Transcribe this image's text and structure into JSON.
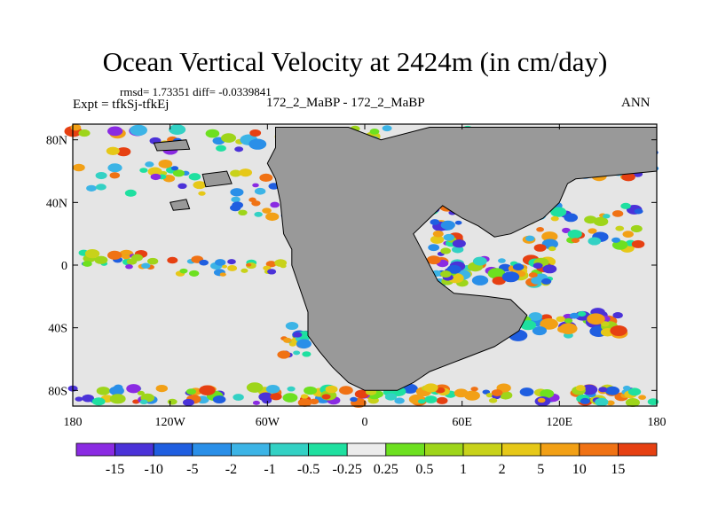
{
  "title": "Ocean Vertical Velocity at 2424m (in cm/day)",
  "stats_line": "rmsd= 1.73351 diff= -0.0339841",
  "expt_label": "Expt = tfkSj-tfkEj",
  "subtitle": "172_2_MaBP - 172_2_MaBP",
  "season": "ANN",
  "colors": {
    "land": "#999999",
    "neutral_ocean": "#e5e5e5",
    "coast": "#000000"
  },
  "chart_data": {
    "type": "heatmap",
    "map_projection": "cylindrical-equidistant",
    "x_range": [
      -180,
      180
    ],
    "y_range": [
      -90,
      90
    ],
    "x_ticks": [
      {
        "value": -180,
        "label": "180"
      },
      {
        "value": -120,
        "label": "120W"
      },
      {
        "value": -60,
        "label": "60W"
      },
      {
        "value": 0,
        "label": "0"
      },
      {
        "value": 60,
        "label": "60E"
      },
      {
        "value": 120,
        "label": "120E"
      },
      {
        "value": 180,
        "label": "180"
      }
    ],
    "y_ticks": [
      {
        "value": 80,
        "label": "80N"
      },
      {
        "value": 40,
        "label": "40N"
      },
      {
        "value": 0,
        "label": "0"
      },
      {
        "value": -40,
        "label": "40S"
      },
      {
        "value": -80,
        "label": "80S"
      }
    ],
    "colorbar": {
      "colors": [
        "#8a2be2",
        "#4b32d8",
        "#1f5ee0",
        "#2a8fe8",
        "#3cb4e6",
        "#33d1c4",
        "#1fe0a0",
        "#ececec",
        "#6de020",
        "#9ed51a",
        "#c8d21a",
        "#e6c818",
        "#f2a016",
        "#f07214",
        "#e64012"
      ],
      "labels": [
        "-15",
        "-10",
        "-5",
        "-2",
        "-1",
        "-0.5",
        "-0.25",
        "0.25",
        "0.5",
        "1",
        "2",
        "5",
        "10",
        "15"
      ]
    }
  }
}
